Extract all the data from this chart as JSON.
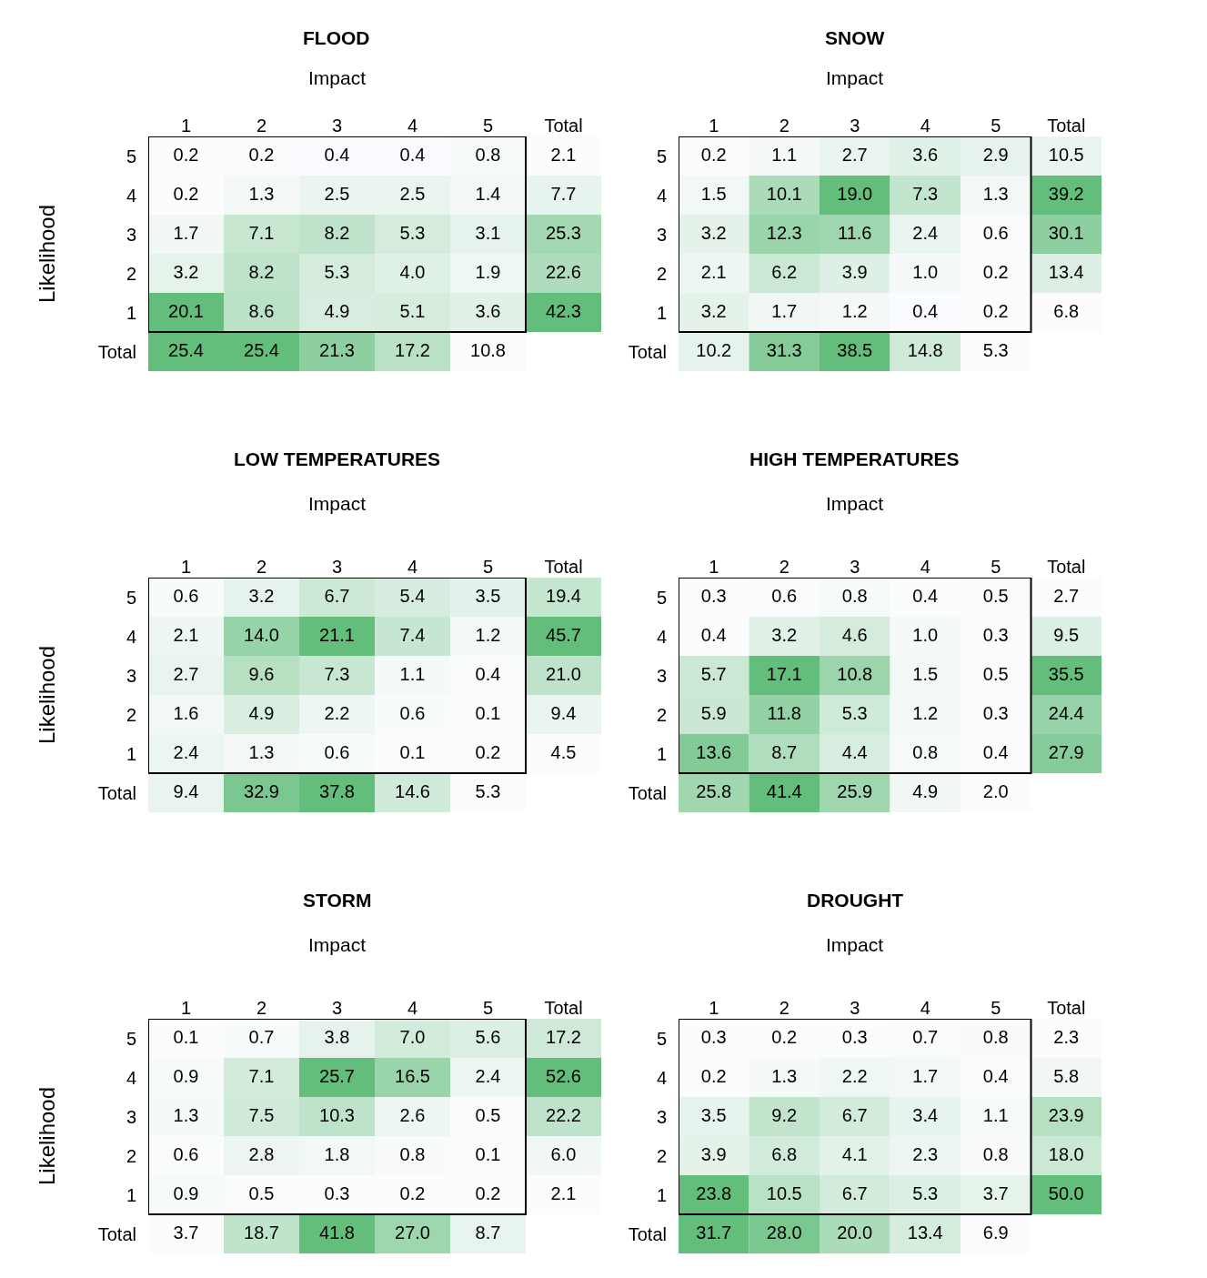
{
  "chart_data": [
    {
      "type": "heatmap",
      "title": "FLOOD",
      "xlabel": "Impact",
      "ylabel": "Likelihood",
      "color": "#63be7b",
      "data_labels": true,
      "grid": false,
      "categories": [
        "1",
        "2",
        "3",
        "4",
        "5",
        "Total"
      ],
      "y_categories": [
        "5",
        "4",
        "3",
        "2",
        "1",
        "Total"
      ],
      "cells": [
        [
          0.2,
          0.2,
          0.4,
          0.4,
          0.8,
          2.1
        ],
        [
          0.2,
          1.3,
          2.5,
          2.5,
          1.4,
          7.7
        ],
        [
          1.7,
          7.1,
          8.2,
          5.3,
          3.1,
          25.3
        ],
        [
          3.2,
          8.2,
          5.3,
          4.0,
          1.9,
          22.6
        ],
        [
          20.1,
          8.6,
          4.9,
          5.1,
          3.6,
          42.3
        ],
        [
          25.4,
          25.4,
          21.3,
          17.2,
          10.8,
          null
        ]
      ],
      "cell_labels": [
        [
          "0.2",
          "0.2",
          "0.4",
          "0.4",
          "0.8",
          "2.1"
        ],
        [
          "0.2",
          "1.3",
          "2.5",
          "2.5",
          "1.4",
          "7.7"
        ],
        [
          "1.7",
          "7.1",
          "8.2",
          "5.3",
          "3.1",
          "25.3"
        ],
        [
          "3.2",
          "8.2",
          "5.3",
          "4.0",
          "1.9",
          "22.6"
        ],
        [
          "20.1",
          "8.6",
          "4.9",
          "5.1",
          "3.6",
          "42.3"
        ],
        [
          "25.4",
          "25.4",
          "21.3",
          "17.2",
          "10.8",
          null
        ]
      ]
    },
    {
      "type": "heatmap",
      "title": "SNOW",
      "xlabel": "Impact",
      "color": "#63be7b",
      "data_labels": true,
      "grid": false,
      "categories": [
        "1",
        "2",
        "3",
        "4",
        "5",
        "Total"
      ],
      "y_categories": [
        "5",
        "4",
        "3",
        "2",
        "1",
        "Total"
      ],
      "cells": [
        [
          0.2,
          1.1,
          2.7,
          3.6,
          2.9,
          10.5
        ],
        [
          1.5,
          10.1,
          19.0,
          7.3,
          1.3,
          39.2
        ],
        [
          3.2,
          12.3,
          11.6,
          2.4,
          0.6,
          30.1
        ],
        [
          2.1,
          6.2,
          3.9,
          1.0,
          0.2,
          13.4
        ],
        [
          3.2,
          1.7,
          1.2,
          0.4,
          0.2,
          6.8
        ],
        [
          10.2,
          31.3,
          38.5,
          14.8,
          5.3,
          null
        ]
      ],
      "cell_labels": [
        [
          "0.2",
          "1.1",
          "2.7",
          "3.6",
          "2.9",
          "10.5"
        ],
        [
          "1.5",
          "10.1",
          "19.0",
          "7.3",
          "1.3",
          "39.2"
        ],
        [
          "3.2",
          "12.3",
          "11.6",
          "2.4",
          "0.6",
          "30.1"
        ],
        [
          "2.1",
          "6.2",
          "3.9",
          "1.0",
          "0.2",
          "13.4"
        ],
        [
          "3.2",
          "1.7",
          "1.2",
          "0.4",
          "0.2",
          "6.8"
        ],
        [
          "10.2",
          "31.3",
          "38.5",
          "14.8",
          "5.3",
          null
        ]
      ]
    },
    {
      "type": "heatmap",
      "title": "LOW TEMPERATURES",
      "xlabel": "Impact",
      "ylabel": "Likelihood",
      "color": "#63be7b",
      "data_labels": true,
      "grid": false,
      "categories": [
        "1",
        "2",
        "3",
        "4",
        "5",
        "Total"
      ],
      "y_categories": [
        "5",
        "4",
        "3",
        "2",
        "1",
        "Total"
      ],
      "cells": [
        [
          0.6,
          3.2,
          6.7,
          5.4,
          3.5,
          19.4
        ],
        [
          2.1,
          14.0,
          21.1,
          7.4,
          1.2,
          45.7
        ],
        [
          2.7,
          9.6,
          7.3,
          1.1,
          0.4,
          21.0
        ],
        [
          1.6,
          4.9,
          2.2,
          0.6,
          0.1,
          9.4
        ],
        [
          2.4,
          1.3,
          0.6,
          0.1,
          0.2,
          4.5
        ],
        [
          9.4,
          32.9,
          37.8,
          14.6,
          5.3,
          null
        ]
      ],
      "cell_labels": [
        [
          "0.6",
          "3.2",
          "6.7",
          "5.4",
          "3.5",
          "19.4"
        ],
        [
          "2.1",
          "14.0",
          "21.1",
          "7.4",
          "1.2",
          "45.7"
        ],
        [
          "2.7",
          "9.6",
          "7.3",
          "1.1",
          "0.4",
          "21.0"
        ],
        [
          "1.6",
          "4.9",
          "2.2",
          "0.6",
          "0.1",
          "9.4"
        ],
        [
          "2.4",
          "1.3",
          "0.6",
          "0.1",
          "0.2",
          "4.5"
        ],
        [
          "9.4",
          "32.9",
          "37.8",
          "14.6",
          "5.3",
          null
        ]
      ]
    },
    {
      "type": "heatmap",
      "title": "HIGH TEMPERATURES",
      "xlabel": "Impact",
      "color": "#63be7b",
      "data_labels": true,
      "grid": false,
      "categories": [
        "1",
        "2",
        "3",
        "4",
        "5",
        "Total"
      ],
      "y_categories": [
        "5",
        "4",
        "3",
        "2",
        "1",
        "Total"
      ],
      "cells": [
        [
          0.3,
          0.6,
          0.8,
          0.4,
          0.5,
          2.7
        ],
        [
          0.4,
          3.2,
          4.6,
          1.0,
          0.3,
          9.5
        ],
        [
          5.7,
          17.1,
          10.8,
          1.5,
          0.5,
          35.5
        ],
        [
          5.9,
          11.8,
          5.3,
          1.2,
          0.3,
          24.4
        ],
        [
          13.6,
          8.7,
          4.4,
          0.8,
          0.4,
          27.9
        ],
        [
          25.8,
          41.4,
          25.9,
          4.9,
          2.0,
          null
        ]
      ],
      "cell_labels": [
        [
          "0.3",
          "0.6",
          "0.8",
          "0.4",
          "0.5",
          "2.7"
        ],
        [
          "0.4",
          "3.2",
          "4.6",
          "1.0",
          "0.3",
          "9.5"
        ],
        [
          "5.7",
          "17.1",
          "10.8",
          "1.5",
          "0.5",
          "35.5"
        ],
        [
          "5.9",
          "11.8",
          "5.3",
          "1.2",
          "0.3",
          "24.4"
        ],
        [
          "13.6",
          "8.7",
          "4.4",
          "0.8",
          "0.4",
          "27.9"
        ],
        [
          "25.8",
          "41.4",
          "25.9",
          "4.9",
          "2.0",
          null
        ]
      ]
    },
    {
      "type": "heatmap",
      "title": "STORM",
      "xlabel": "Impact",
      "ylabel": "Likelihood",
      "color": "#63be7b",
      "data_labels": true,
      "grid": false,
      "categories": [
        "1",
        "2",
        "3",
        "4",
        "5",
        "Total"
      ],
      "y_categories": [
        "5",
        "4",
        "3",
        "2",
        "1",
        "Total"
      ],
      "cells": [
        [
          0.1,
          0.7,
          3.8,
          7.0,
          5.6,
          17.2
        ],
        [
          0.9,
          7.1,
          25.7,
          16.5,
          2.4,
          52.6
        ],
        [
          1.3,
          7.5,
          10.3,
          2.6,
          0.5,
          22.2
        ],
        [
          0.6,
          2.8,
          1.8,
          0.8,
          0.1,
          6.0
        ],
        [
          0.9,
          0.5,
          0.3,
          0.2,
          0.2,
          2.1
        ],
        [
          3.7,
          18.7,
          41.8,
          27.0,
          8.7,
          null
        ]
      ],
      "cell_labels": [
        [
          "0.1",
          "0.7",
          "3.8",
          "7.0",
          "5.6",
          "17.2"
        ],
        [
          "0.9",
          "7.1",
          "25.7",
          "16.5",
          "2.4",
          "52.6"
        ],
        [
          "1.3",
          "7.5",
          "10.3",
          "2.6",
          "0.5",
          "22.2"
        ],
        [
          "0.6",
          "2.8",
          "1.8",
          "0.8",
          "0.1",
          "6.0"
        ],
        [
          "0.9",
          "0.5",
          "0.3",
          "0.2",
          "0.2",
          "2.1"
        ],
        [
          "3.7",
          "18.7",
          "41.8",
          "27.0",
          "8.7",
          null
        ]
      ]
    },
    {
      "type": "heatmap",
      "title": "DROUGHT",
      "xlabel": "Impact",
      "color": "#63be7b",
      "data_labels": true,
      "grid": false,
      "categories": [
        "1",
        "2",
        "3",
        "4",
        "5",
        "Total"
      ],
      "y_categories": [
        "5",
        "4",
        "3",
        "2",
        "1",
        "Total"
      ],
      "cells": [
        [
          0.3,
          0.2,
          0.3,
          0.7,
          0.8,
          2.3
        ],
        [
          0.2,
          1.3,
          2.2,
          1.7,
          0.4,
          5.8
        ],
        [
          3.5,
          9.2,
          6.7,
          3.4,
          1.1,
          23.9
        ],
        [
          3.9,
          6.8,
          4.1,
          2.3,
          0.8,
          18.0
        ],
        [
          23.8,
          10.5,
          6.7,
          5.3,
          3.7,
          50.0
        ],
        [
          31.7,
          28.0,
          20.0,
          13.4,
          6.9,
          null
        ]
      ],
      "cell_labels": [
        [
          "0.3",
          "0.2",
          "0.3",
          "0.7",
          "0.8",
          "2.3"
        ],
        [
          "0.2",
          "1.3",
          "2.2",
          "1.7",
          "0.4",
          "5.8"
        ],
        [
          "3.5",
          "9.2",
          "6.7",
          "3.4",
          "1.1",
          "23.9"
        ],
        [
          "3.9",
          "6.8",
          "4.1",
          "2.3",
          "0.8",
          "18.0"
        ],
        [
          "23.8",
          "10.5",
          "6.7",
          "5.3",
          "3.7",
          "50.0"
        ],
        [
          "31.7",
          "28.0",
          "20.0",
          "13.4",
          "6.9",
          null
        ]
      ]
    }
  ]
}
